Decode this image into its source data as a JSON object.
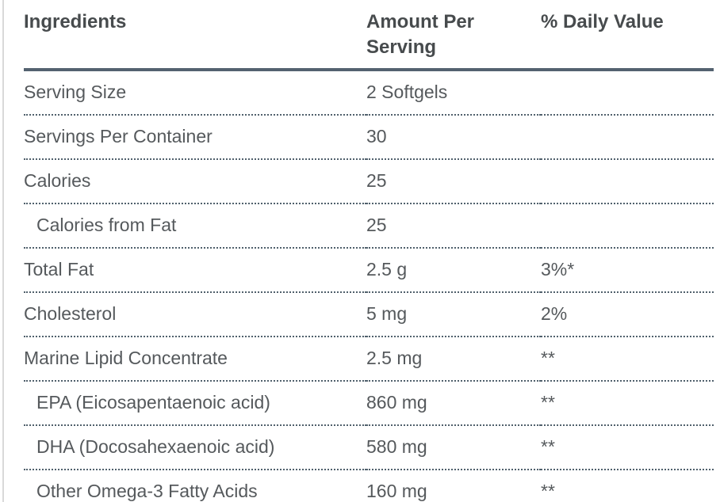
{
  "table": {
    "columns": [
      {
        "label": "Ingredients"
      },
      {
        "label": "Amount Per Serving"
      },
      {
        "label": "% Daily Value"
      }
    ],
    "rows": [
      {
        "ingredient": "Serving Size",
        "amount": "2 Softgels",
        "daily_value": "",
        "indent": false
      },
      {
        "ingredient": "Servings Per Container",
        "amount": "30",
        "daily_value": "",
        "indent": false
      },
      {
        "ingredient": "Calories",
        "amount": "25",
        "daily_value": "",
        "indent": false
      },
      {
        "ingredient": "Calories from Fat",
        "amount": "25",
        "daily_value": "",
        "indent": true
      },
      {
        "ingredient": "Total Fat",
        "amount": "2.5 g",
        "daily_value": "3%*",
        "indent": false
      },
      {
        "ingredient": "Cholesterol",
        "amount": "5 mg",
        "daily_value": "2%",
        "indent": false
      },
      {
        "ingredient": "Marine Lipid Concentrate",
        "amount": "2.5 mg",
        "daily_value": "**",
        "indent": false
      },
      {
        "ingredient": "EPA (Eicosapentaenoic acid)",
        "amount": "860 mg",
        "daily_value": "**",
        "indent": true
      },
      {
        "ingredient": "DHA (Docosahexaenoic acid)",
        "amount": "580 mg",
        "daily_value": "**",
        "indent": true
      },
      {
        "ingredient": "Other Omega-3 Fatty Acids",
        "amount": "160 mg",
        "daily_value": "**",
        "indent": true
      }
    ]
  },
  "colors": {
    "header_text": "#474b4d",
    "body_text": "#55595c",
    "rule_solid": "#546270",
    "rule_dotted": "#50606c",
    "left_divider": "#d9d9d9",
    "background": "#ffffff"
  }
}
